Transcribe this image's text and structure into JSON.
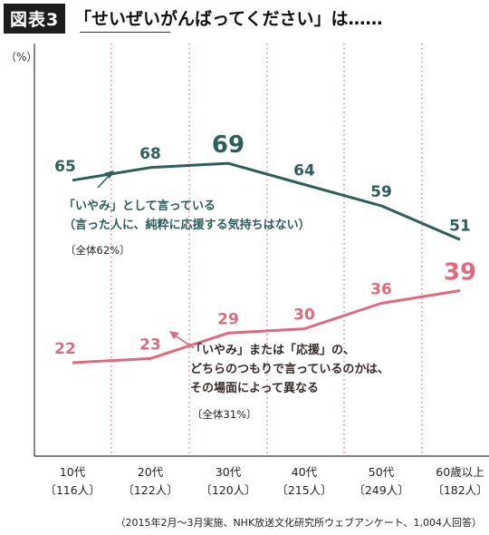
{
  "header": {
    "figure_label": "図表3",
    "title": "「せいぜいがんばってください」は……"
  },
  "annotations": {
    "iyami_line1": "「いやみ」として言っている",
    "iyami_line2": "（言った人に、純粋に応援する気持ちはない）",
    "iyami_total": "〔全体62%〕",
    "either_line1": "「いやみ」または「応援」の、",
    "either_line2": "どちらのつもりで言っているのかは、",
    "either_line3": "その場面によって異なる",
    "either_total": "〔全体31%〕"
  },
  "source": "（2015年2月〜3月実施、NHK放送文化研究所ウェブアンケート、1,004人回答）",
  "colors": {
    "teal": "#2e5e5a",
    "pink": "#de6b7e",
    "grid": "#d96a7e",
    "axis": "#333333"
  },
  "chart_data": {
    "type": "line",
    "y_unit_label": "（%）",
    "categories": [
      "10代",
      "20代",
      "30代",
      "40代",
      "50代",
      "60歳以上"
    ],
    "category_counts": [
      "〔116人〕",
      "〔122人〕",
      "〔120人〕",
      "〔215人〕",
      "〔249人〕",
      "〔182人〕"
    ],
    "ylim": [
      0,
      100
    ],
    "grid": "vertical dotted",
    "series": [
      {
        "name": "「いやみ」として言っている",
        "values": [
          65,
          68,
          69,
          64,
          59,
          51
        ],
        "color": "#2e5e5a",
        "highlight_index": 2
      },
      {
        "name": "「いやみ」または「応援」の、どちらのつもりで言っているのかは、その場面によって異なる",
        "values": [
          22,
          23,
          29,
          30,
          36,
          39
        ],
        "color": "#de6b7e",
        "highlight_index": 5
      }
    ]
  }
}
